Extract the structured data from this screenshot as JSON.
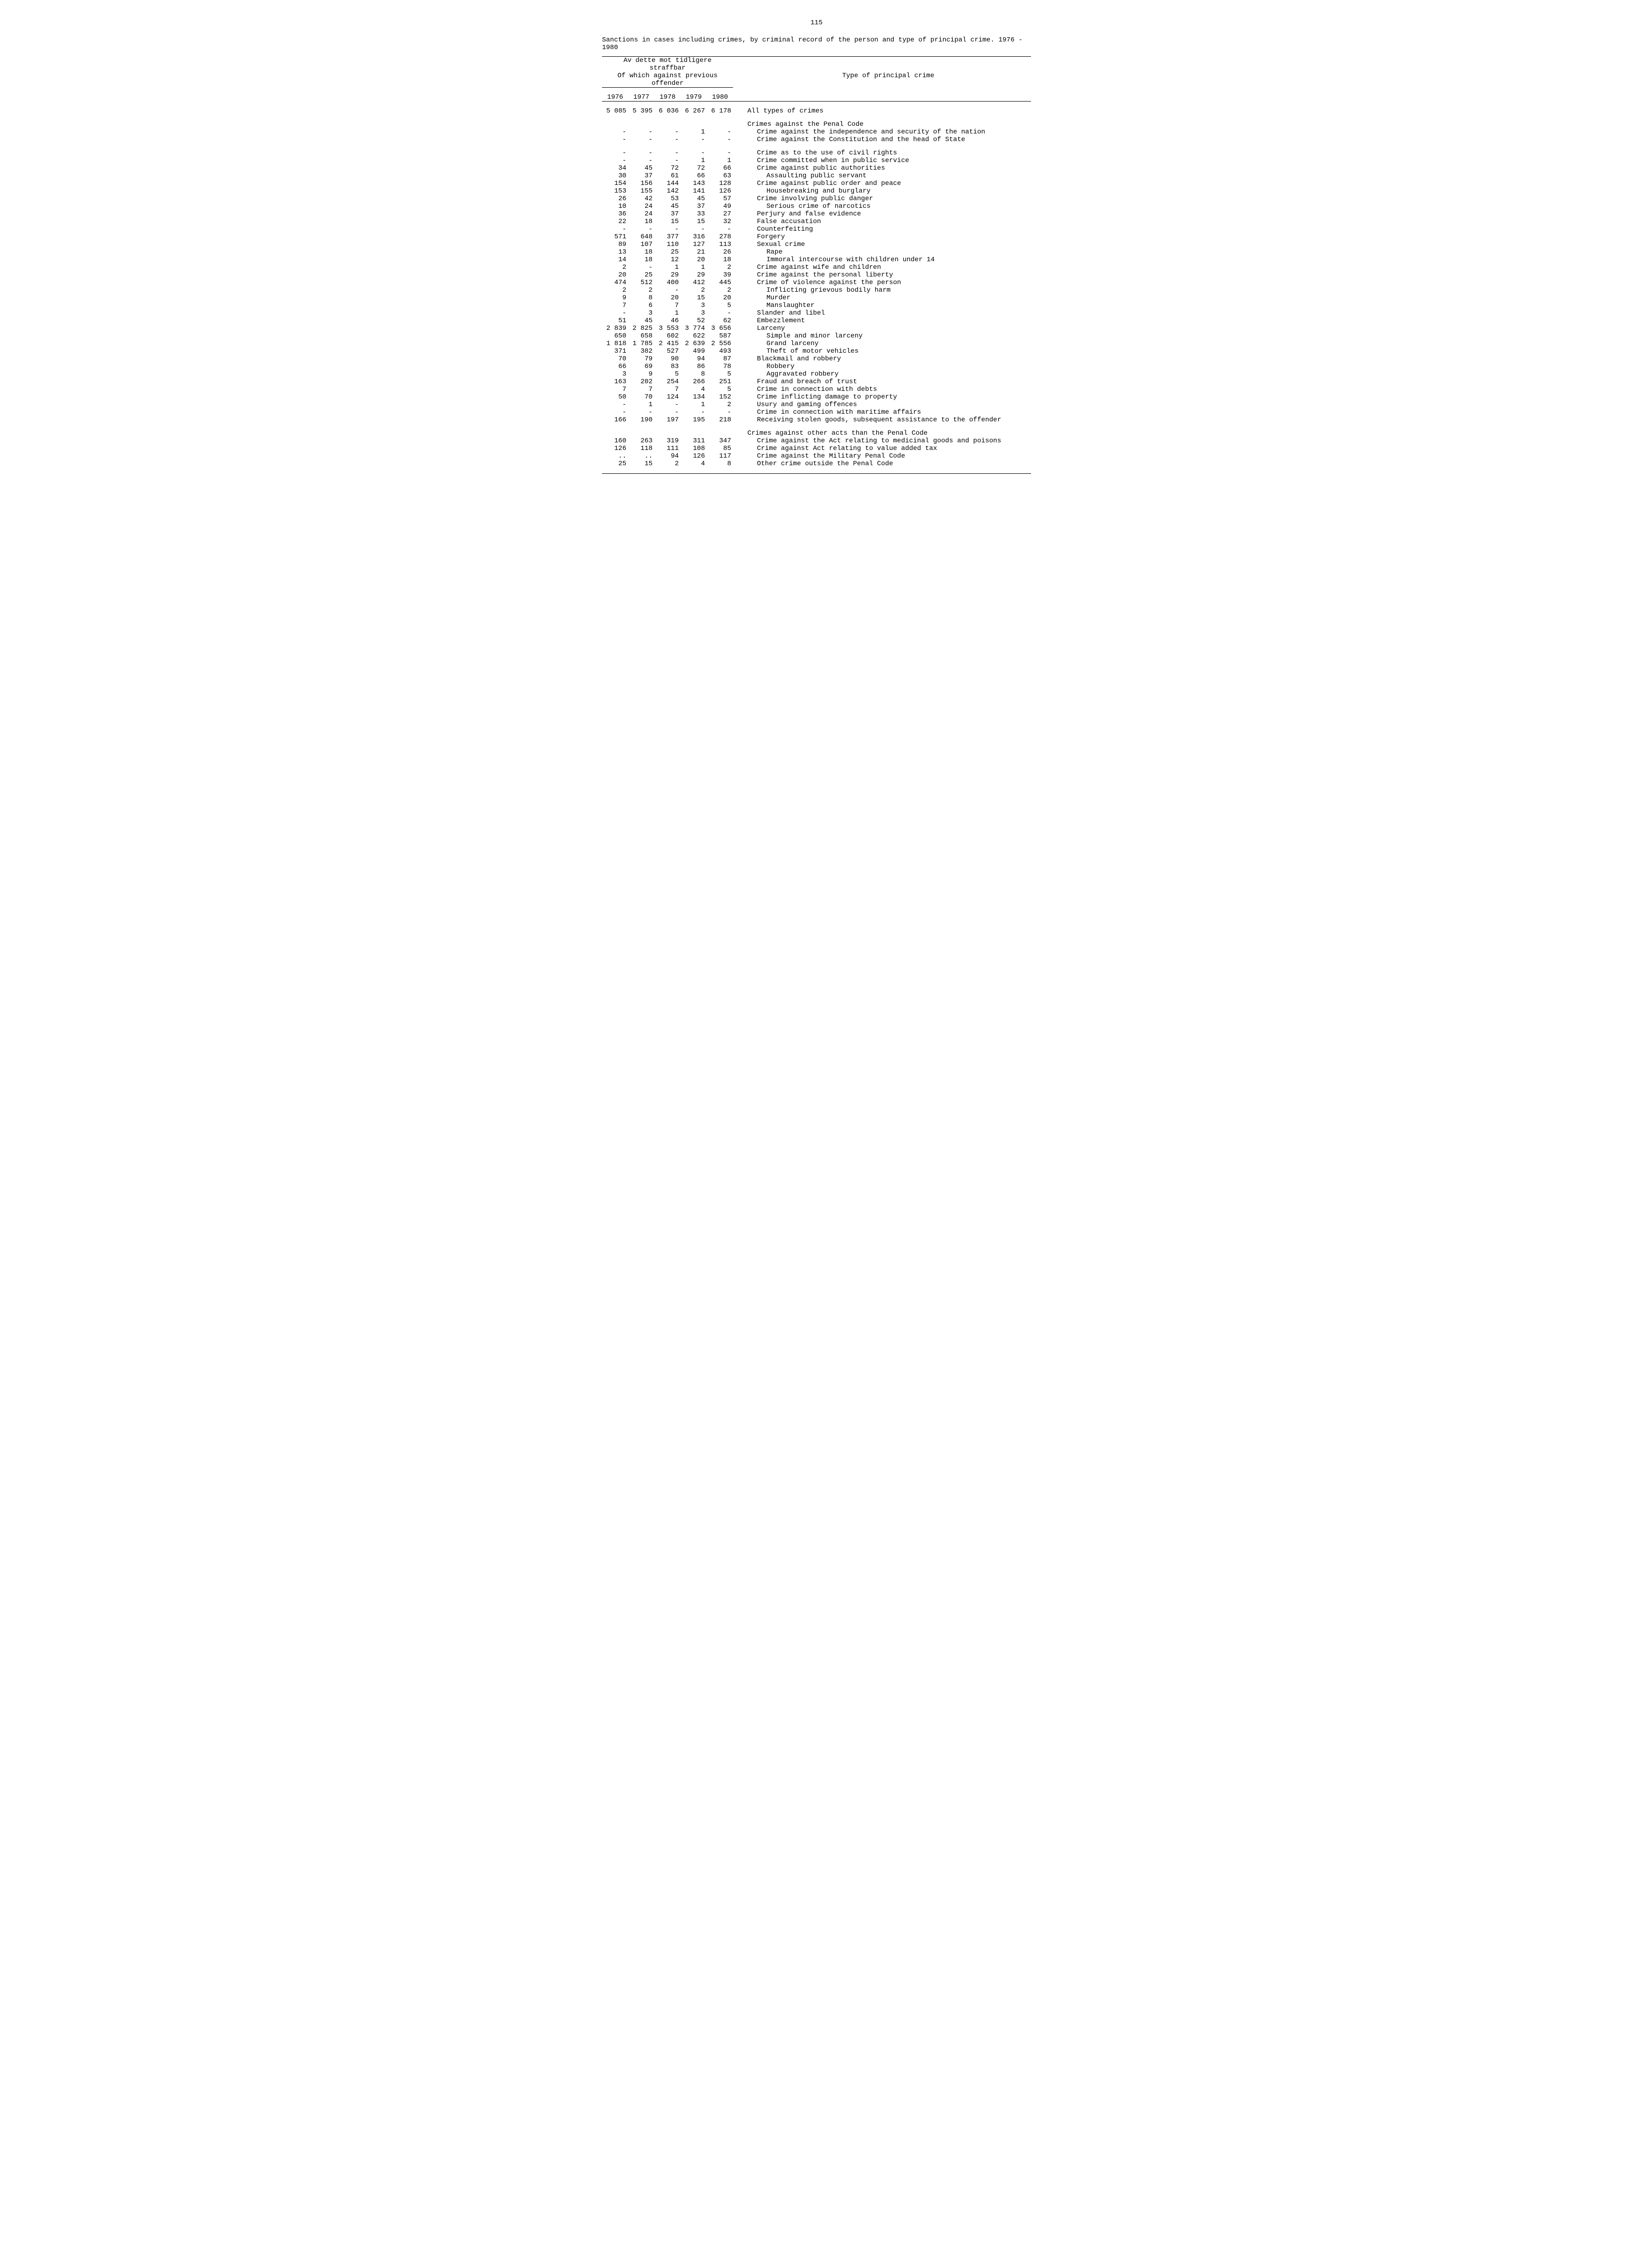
{
  "page_number": "115",
  "caption": "Sanctions in cases including crimes, by criminal record of the person and type of principal crime. 1976 - 1980",
  "header": {
    "group_line1": "Av dette mot tidligere",
    "group_line2": "straffbar",
    "group_line3": "Of which against previous",
    "group_line4": "offender",
    "type_label": "Type of principal crime",
    "years": [
      "1976",
      "1977",
      "1978",
      "1979",
      "1980"
    ]
  },
  "rows": [
    {
      "y": [
        "5 085",
        "5 395",
        "6 036",
        "6 267",
        "6 178"
      ],
      "label": "All types of crimes",
      "indent": 0,
      "gap_before": true,
      "gap_after": true
    },
    {
      "y": [
        "",
        "",
        "",
        "",
        ""
      ],
      "label": "Crimes against the Penal Code",
      "indent": 0
    },
    {
      "y": [
        "-",
        "-",
        "-",
        "1",
        "-"
      ],
      "label": "Crime against the independence and security of the nation",
      "indent": 1
    },
    {
      "y": [
        "-",
        "-",
        "-",
        "-",
        "-"
      ],
      "label": "Crime against the Constitution and the head of State",
      "indent": 1,
      "gap_after": true
    },
    {
      "y": [
        "-",
        "-",
        "-",
        "-",
        "-"
      ],
      "label": "Crime as to the use of civil rights",
      "indent": 1
    },
    {
      "y": [
        "-",
        "-",
        "-",
        "1",
        "1"
      ],
      "label": "Crime committed when in public service",
      "indent": 1
    },
    {
      "y": [
        "34",
        "45",
        "72",
        "72",
        "66"
      ],
      "label": "Crime against public authorities",
      "indent": 1
    },
    {
      "y": [
        "30",
        "37",
        "61",
        "66",
        "63"
      ],
      "label": "Assaulting public servant",
      "indent": 2
    },
    {
      "y": [
        "154",
        "156",
        "144",
        "143",
        "128"
      ],
      "label": "Crime against public order and peace",
      "indent": 1
    },
    {
      "y": [
        "153",
        "155",
        "142",
        "141",
        "126"
      ],
      "label": "Housebreaking and burglary",
      "indent": 2
    },
    {
      "y": [
        "26",
        "42",
        "53",
        "45",
        "57"
      ],
      "label": "Crime involving public danger",
      "indent": 1
    },
    {
      "y": [
        "10",
        "24",
        "45",
        "37",
        "49"
      ],
      "label": "Serious crime of narcotics",
      "indent": 2
    },
    {
      "y": [
        "36",
        "24",
        "37",
        "33",
        "27"
      ],
      "label": "Perjury and false evidence",
      "indent": 1
    },
    {
      "y": [
        "22",
        "18",
        "15",
        "15",
        "32"
      ],
      "label": "False accusation",
      "indent": 1
    },
    {
      "y": [
        "-",
        "-",
        "-",
        "-",
        "-"
      ],
      "label": "Counterfeiting",
      "indent": 1
    },
    {
      "y": [
        "571",
        "648",
        "377",
        "316",
        "278"
      ],
      "label": "Forgery",
      "indent": 1
    },
    {
      "y": [
        "89",
        "107",
        "110",
        "127",
        "113"
      ],
      "label": "Sexual crime",
      "indent": 1
    },
    {
      "y": [
        "13",
        "18",
        "25",
        "21",
        "26"
      ],
      "label": "Rape",
      "indent": 2
    },
    {
      "y": [
        "14",
        "18",
        "12",
        "20",
        "18"
      ],
      "label": "Immoral intercourse with children under 14",
      "indent": 2
    },
    {
      "y": [
        "2",
        "-",
        "1",
        "1",
        "2"
      ],
      "label": "Crime against wife and children",
      "indent": 1
    },
    {
      "y": [
        "20",
        "25",
        "29",
        "29",
        "39"
      ],
      "label": "Crime against the personal liberty",
      "indent": 1
    },
    {
      "y": [
        "474",
        "512",
        "400",
        "412",
        "445"
      ],
      "label": "Crime of violence against the person",
      "indent": 1
    },
    {
      "y": [
        "2",
        "2",
        "-",
        "2",
        "2"
      ],
      "label": "Inflicting grievous bodily harm",
      "indent": 2
    },
    {
      "y": [
        "9",
        "8",
        "20",
        "15",
        "20"
      ],
      "label": "Murder",
      "indent": 2
    },
    {
      "y": [
        "7",
        "6",
        "7",
        "3",
        "5"
      ],
      "label": "Manslaughter",
      "indent": 2
    },
    {
      "y": [
        "-",
        "3",
        "1",
        "3",
        "-"
      ],
      "label": "Slander and libel",
      "indent": 1
    },
    {
      "y": [
        "51",
        "45",
        "46",
        "52",
        "62"
      ],
      "label": "Embezzlement",
      "indent": 1
    },
    {
      "y": [
        "2 839",
        "2 825",
        "3 553",
        "3 774",
        "3 656"
      ],
      "label": "Larceny",
      "indent": 1
    },
    {
      "y": [
        "650",
        "658",
        "602",
        "622",
        "587"
      ],
      "label": "Simple and minor larceny",
      "indent": 2
    },
    {
      "y": [
        "1 818",
        "1 785",
        "2 415",
        "2 639",
        "2 556"
      ],
      "label": "Grand larceny",
      "indent": 2
    },
    {
      "y": [
        "371",
        "382",
        "527",
        "499",
        "493"
      ],
      "label": "Theft of motor vehicles",
      "indent": 2
    },
    {
      "y": [
        "70",
        "79",
        "90",
        "94",
        "87"
      ],
      "label": "Blackmail and robbery",
      "indent": 1
    },
    {
      "y": [
        "66",
        "69",
        "83",
        "86",
        "78"
      ],
      "label": "Robbery",
      "indent": 2
    },
    {
      "y": [
        "3",
        "9",
        "5",
        "8",
        "5"
      ],
      "label": "Aggravated robbery",
      "indent": 2
    },
    {
      "y": [
        "163",
        "202",
        "254",
        "266",
        "251"
      ],
      "label": "Fraud and breach of trust",
      "indent": 1
    },
    {
      "y": [
        "7",
        "7",
        "7",
        "4",
        "5"
      ],
      "label": "Crime in connection with debts",
      "indent": 1
    },
    {
      "y": [
        "50",
        "70",
        "124",
        "134",
        "152"
      ],
      "label": "Crime inflicting damage to property",
      "indent": 1
    },
    {
      "y": [
        "-",
        "1",
        "-",
        "1",
        "2"
      ],
      "label": "Usury and gaming offences",
      "indent": 1
    },
    {
      "y": [
        "-",
        "-",
        "-",
        "-",
        "-"
      ],
      "label": "Crime in connection with maritime affairs",
      "indent": 1
    },
    {
      "y": [
        "166",
        "190",
        "197",
        "195",
        "218"
      ],
      "label": "Receiving stolen goods, subsequent assistance to the offender",
      "indent": 1,
      "gap_after": true
    },
    {
      "y": [
        "",
        "",
        "",
        "",
        ""
      ],
      "label": "Crimes against other acts than the Penal Code",
      "indent": 0
    },
    {
      "y": [
        "160",
        "263",
        "319",
        "311",
        "347"
      ],
      "label": "Crime against the Act relating to medicinal goods and poisons",
      "indent": 1
    },
    {
      "y": [
        "126",
        "118",
        "111",
        "108",
        "85"
      ],
      "label": "Crime against Act relating to value added tax",
      "indent": 1
    },
    {
      "y": [
        "..",
        "..",
        "94",
        "126",
        "117"
      ],
      "label": "Crime against the Military Penal Code",
      "indent": 1
    },
    {
      "y": [
        "25",
        "15",
        "2",
        "4",
        "8"
      ],
      "label": "Other crime outside the Penal Code",
      "indent": 1
    }
  ]
}
